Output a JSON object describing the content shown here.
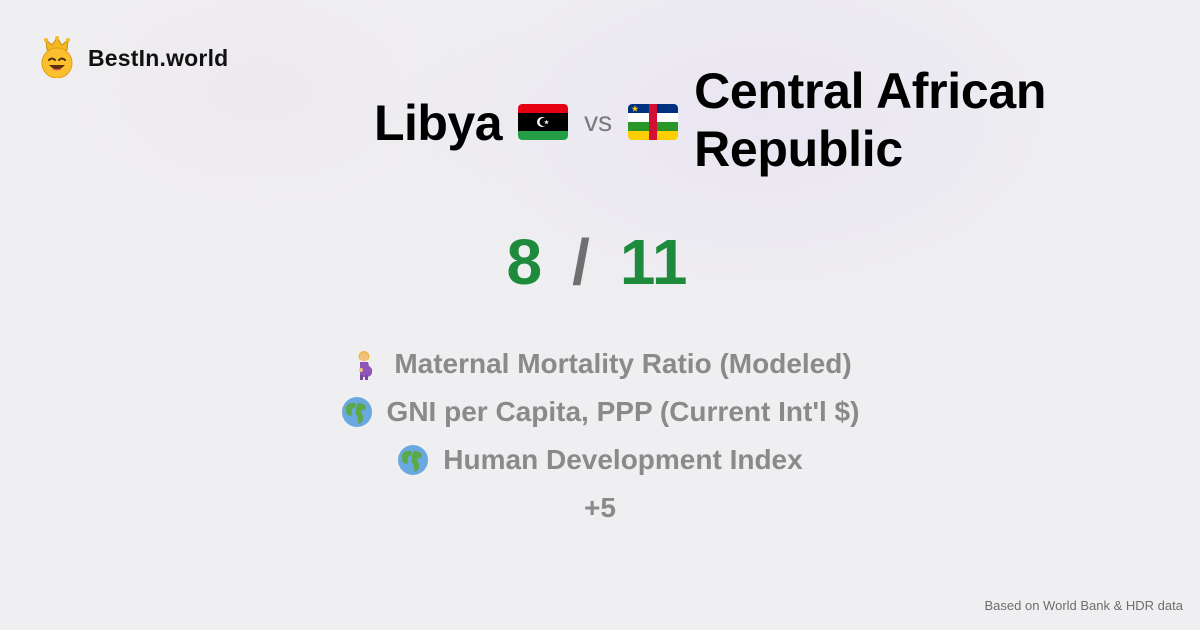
{
  "brand": {
    "name": "BestIn.world",
    "logo_icon": "crowned-smiley-icon"
  },
  "comparison": {
    "country_a": "Libya",
    "country_b": "Central African Republic",
    "vs_label": "vs",
    "score_a": "8",
    "score_separator": "/",
    "score_b": "11",
    "colors": {
      "score": "#1d8a3c",
      "muted": "#8a8a8a"
    }
  },
  "metrics": [
    {
      "label": "Maternal Mortality Ratio (Modeled)",
      "icon": "pregnant-woman-icon"
    },
    {
      "label": "GNI per Capita, PPP (Current Int'l $)",
      "icon": "globe-icon"
    },
    {
      "label": "Human Development Index",
      "icon": "globe-icon"
    }
  ],
  "more_label": "+5",
  "footer": {
    "source": "Based on World Bank & HDR data"
  }
}
